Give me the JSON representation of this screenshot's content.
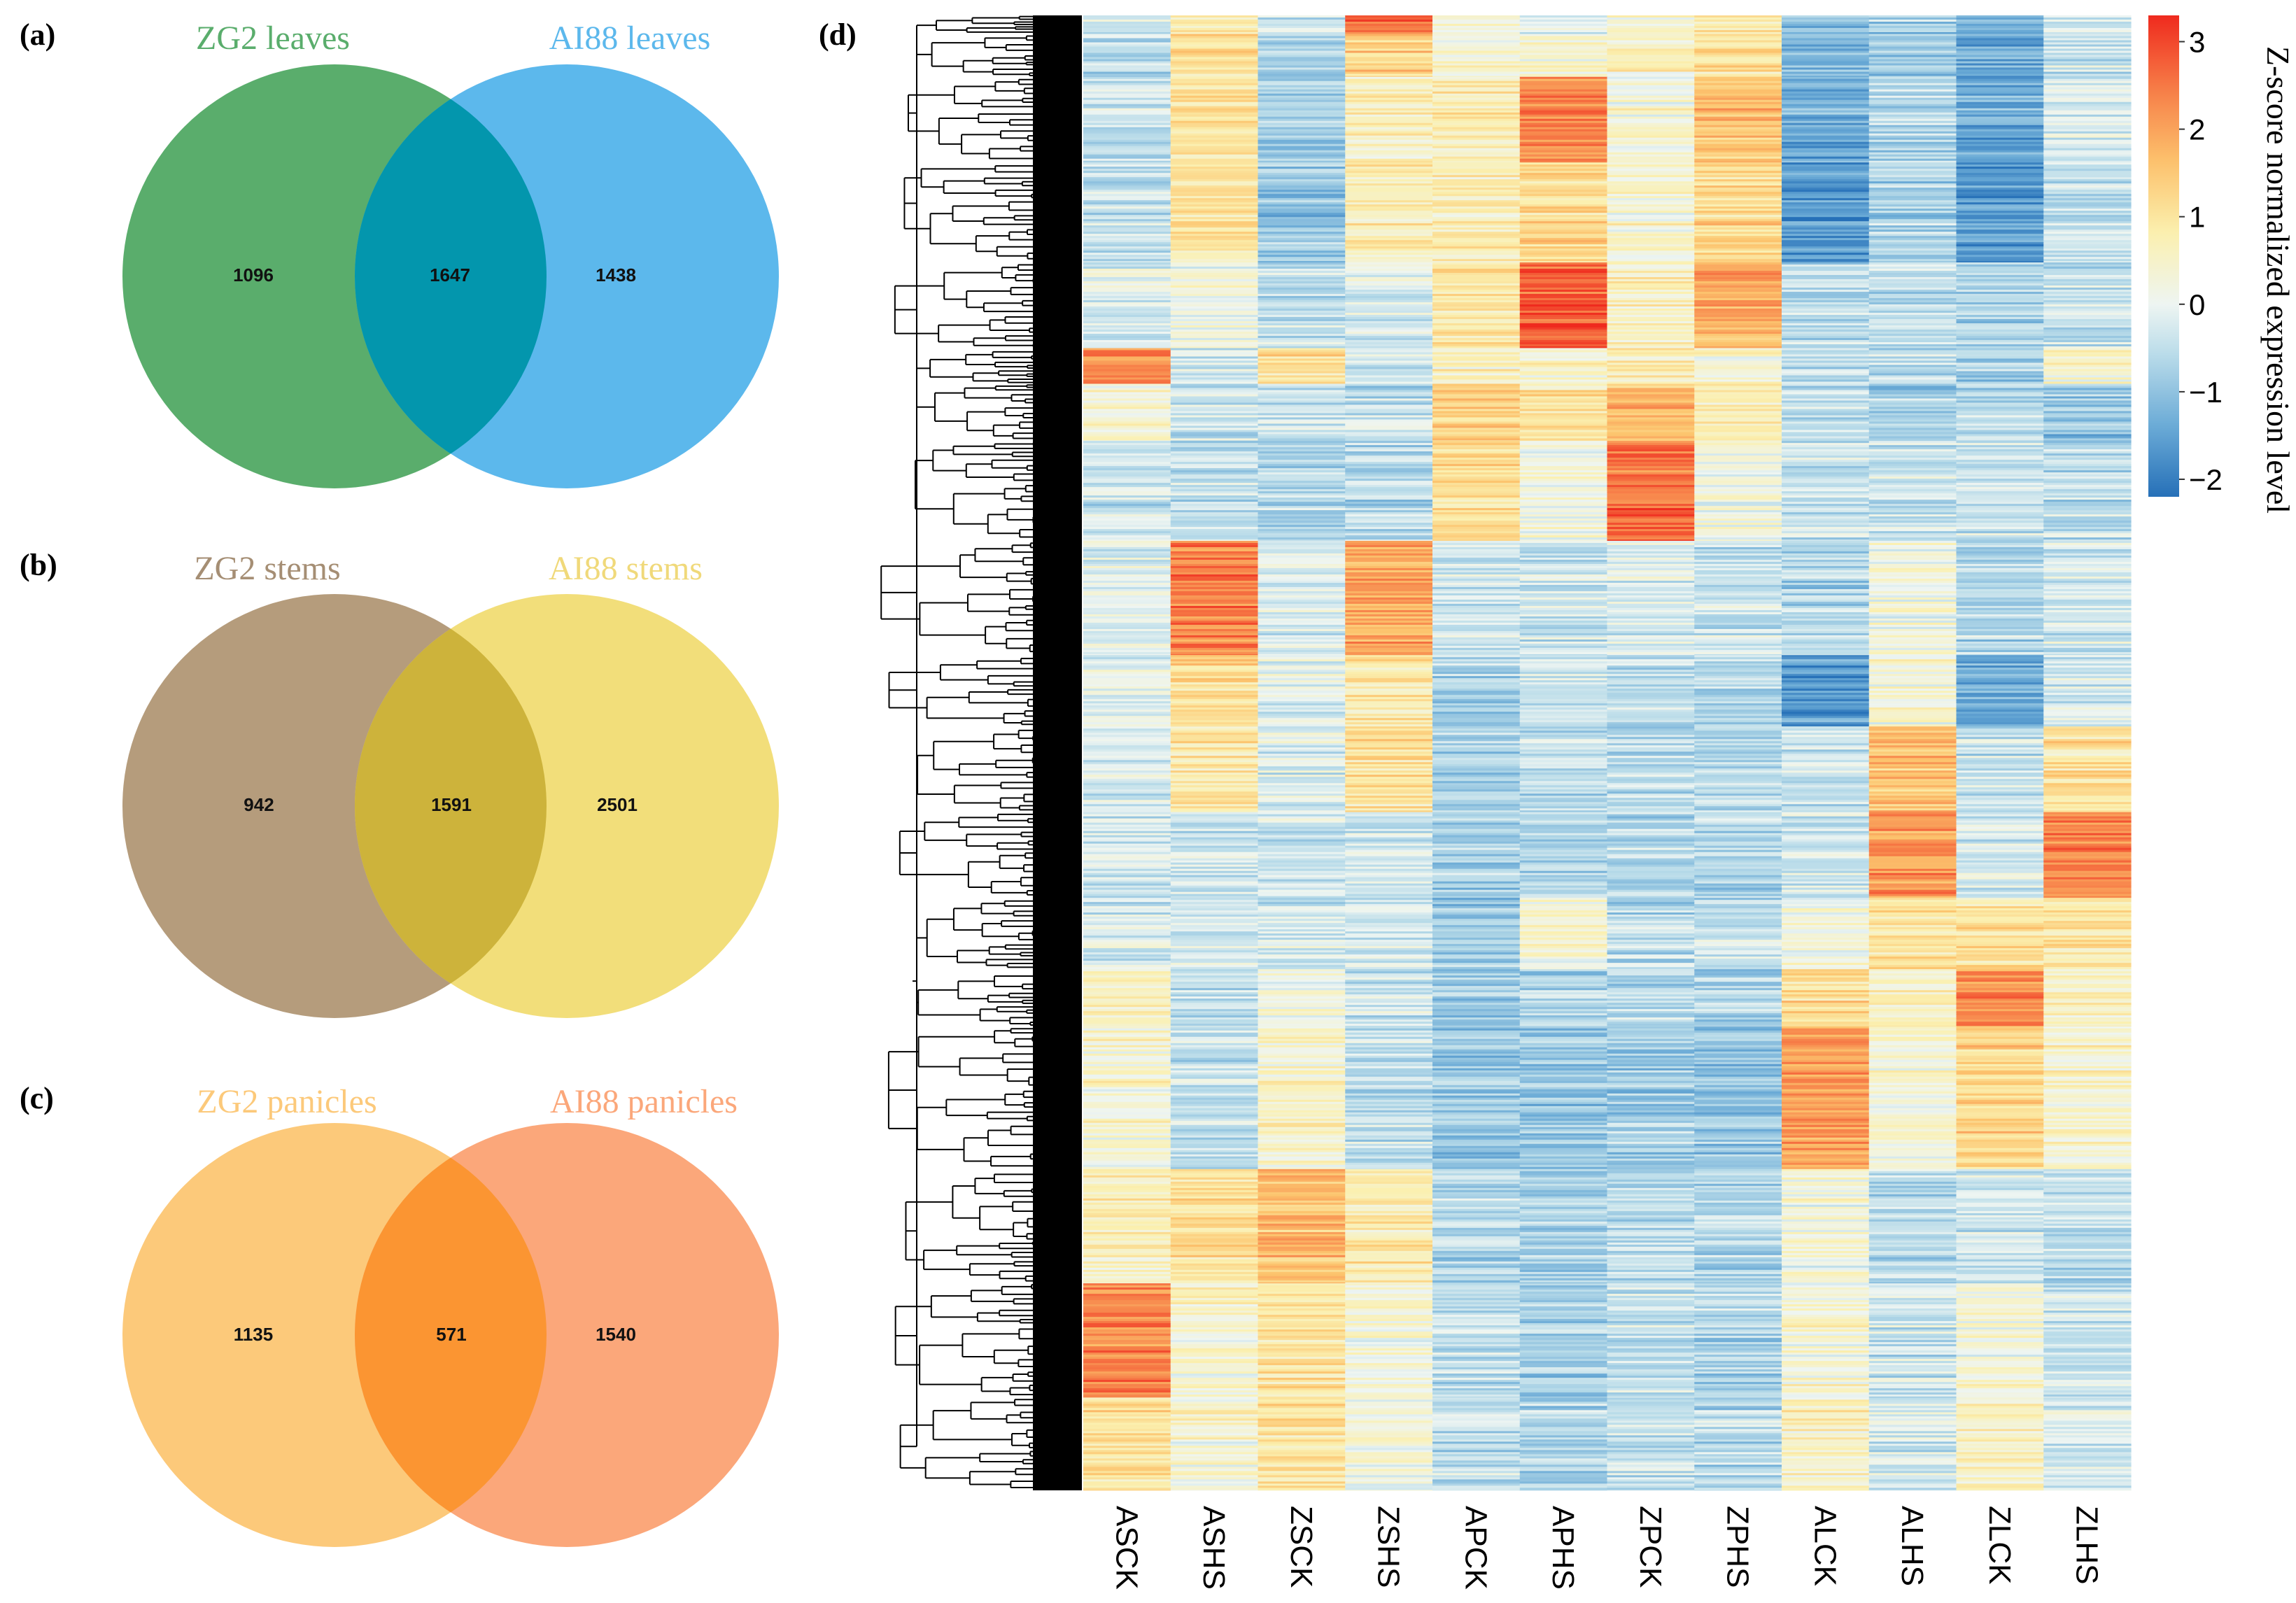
{
  "figure": {
    "panels": [
      {
        "label": "(a)",
        "left_title": "ZG2 leaves",
        "right_title": "AI88 leaves"
      },
      {
        "label": "(b)",
        "left_title": "ZG2 stems",
        "right_title": "AI88 stems"
      },
      {
        "label": "(c)",
        "left_title": "ZG2 panicles",
        "right_title": "AI88 panicles"
      },
      {
        "label": "(d)"
      }
    ],
    "colors": {
      "leaves_left": "#5aad6c",
      "leaves_right": "#5cb8ec",
      "leaves_overlap": "#0396ad",
      "stems_left": "#b59c7c",
      "stems_right": "#f2de7a",
      "stems_overlap": "#cdb33b",
      "panicles_left": "#fcc97a",
      "panicles_right": "#fba77a",
      "panicles_overlap": "#fb9532",
      "leaves_title": "#5aad6c",
      "leaves_title_right": "#5cb8ec",
      "stems_title": "#a58e74",
      "stems_title_right": "#f0d97a",
      "panicles_title": "#fcc97a",
      "panicles_title_right": "#fba77a",
      "heat_low": "#2e7fc0",
      "heat_mid": "#eef5f5",
      "heat_high": "#f03a22"
    }
  },
  "chart_data": [
    {
      "type": "venn",
      "sets": [
        "ZG2 leaves",
        "AI88 leaves"
      ],
      "left_only": "1096",
      "intersection": "1647",
      "right_only": "1438"
    },
    {
      "type": "venn",
      "sets": [
        "ZG2 stems",
        "AI88 stems"
      ],
      "left_only": "942",
      "intersection": "1591",
      "right_only": "2501"
    },
    {
      "type": "venn",
      "sets": [
        "ZG2 panicles",
        "AI88 panicles"
      ],
      "left_only": "1135",
      "intersection": "571",
      "right_only": "1540"
    },
    {
      "type": "heatmap",
      "columns": [
        "ASCK",
        "ASHS",
        "ZSCK",
        "ZSHS",
        "APCK",
        "APHS",
        "ZPCK",
        "ZPHS",
        "ALCK",
        "ALHS",
        "ZLCK",
        "ZLHS"
      ],
      "colorbar_label": "Z-score normalized expression level",
      "colorbar_ticks": [
        "3",
        "2",
        "1",
        "0",
        "−1",
        "−2"
      ],
      "colorbar_tick_values": [
        3,
        2,
        1,
        0,
        -1,
        -2
      ],
      "colorbar_range": [
        -2.2,
        3.3
      ],
      "row_dendrogram": true,
      "clusters": [
        {
          "rows": 0.013,
          "v": [
            -0.3,
            0.8,
            -0.5,
            2.6,
            0.2,
            -0.2,
            0.4,
            0.9,
            -1.0,
            -0.8,
            -1.1,
            -0.4
          ]
        },
        {
          "rows": 0.03,
          "v": [
            -0.5,
            1.0,
            -0.7,
            1.3,
            0.3,
            0.4,
            0.5,
            1.0,
            -1.2,
            -0.9,
            -1.4,
            -0.4
          ]
        },
        {
          "rows": 0.06,
          "v": [
            -0.4,
            0.9,
            -0.8,
            0.6,
            0.8,
            2.3,
            0.3,
            1.6,
            -1.4,
            -0.6,
            -1.4,
            -0.2
          ]
        },
        {
          "rows": 0.07,
          "v": [
            -0.4,
            1.0,
            -0.9,
            0.7,
            0.8,
            1.2,
            0.4,
            1.2,
            -1.6,
            -0.7,
            -1.6,
            -0.4
          ]
        },
        {
          "rows": 0.06,
          "v": [
            -0.2,
            0.1,
            -0.5,
            -0.2,
            0.9,
            2.8,
            0.6,
            1.9,
            -0.6,
            -0.5,
            -0.7,
            -0.4
          ]
        },
        {
          "rows": 0.025,
          "v": [
            2.3,
            -0.4,
            1.0,
            -0.3,
            0.6,
            0.4,
            0.8,
            0.4,
            -0.4,
            -0.6,
            -0.8,
            0.4
          ]
        },
        {
          "rows": 0.04,
          "v": [
            0.3,
            -0.4,
            -0.5,
            -0.5,
            1.2,
            0.9,
            1.7,
            0.6,
            -0.4,
            -0.8,
            -0.6,
            -1.0
          ]
        },
        {
          "rows": 0.07,
          "v": [
            -0.4,
            -0.4,
            -0.6,
            -0.6,
            1.1,
            0.2,
            2.6,
            0.1,
            -0.4,
            -0.4,
            -0.4,
            -0.5
          ]
        },
        {
          "rows": 0.08,
          "v": [
            -0.1,
            2.4,
            -0.2,
            1.9,
            -0.4,
            -0.3,
            -0.2,
            -0.4,
            -0.7,
            0.2,
            -0.6,
            -0.3
          ]
        },
        {
          "rows": 0.05,
          "v": [
            -0.1,
            1.2,
            -0.1,
            0.9,
            -0.7,
            -0.3,
            -0.5,
            -0.5,
            -1.6,
            0.3,
            -1.3,
            -0.3
          ]
        },
        {
          "rows": 0.06,
          "v": [
            -0.2,
            0.9,
            -0.2,
            1.0,
            -0.7,
            -0.5,
            -0.5,
            -0.6,
            -0.3,
            1.6,
            -0.4,
            1.0
          ]
        },
        {
          "rows": 0.06,
          "v": [
            -0.3,
            -0.3,
            -0.3,
            -0.2,
            -0.8,
            -0.6,
            -0.6,
            -0.6,
            -0.3,
            2.1,
            -0.2,
            2.3
          ]
        },
        {
          "rows": 0.05,
          "v": [
            -0.3,
            -0.3,
            -0.3,
            -0.3,
            -0.8,
            0.4,
            -0.6,
            -0.4,
            0.2,
            0.9,
            1.0,
            0.8
          ]
        },
        {
          "rows": 0.04,
          "v": [
            0.6,
            -0.5,
            0.3,
            -0.4,
            -0.8,
            -0.7,
            -0.6,
            -0.7,
            1.2,
            0.6,
            2.2,
            0.6
          ]
        },
        {
          "rows": 0.1,
          "v": [
            0.4,
            -0.5,
            0.5,
            -0.5,
            -0.9,
            -0.9,
            -0.8,
            -0.9,
            2.1,
            0.4,
            1.3,
            0.5
          ]
        },
        {
          "rows": 0.08,
          "v": [
            0.6,
            1.0,
            1.6,
            0.8,
            -0.7,
            -0.8,
            -0.6,
            -0.7,
            0.2,
            -0.6,
            -0.3,
            -0.5
          ]
        },
        {
          "rows": 0.08,
          "v": [
            2.3,
            0.4,
            0.9,
            0.2,
            -0.6,
            -0.8,
            -0.5,
            -0.7,
            0.3,
            -0.4,
            0.2,
            -0.4
          ]
        },
        {
          "rows": 0.065,
          "v": [
            1.0,
            0.4,
            1.0,
            0.3,
            -0.5,
            -0.7,
            -0.4,
            -0.6,
            0.6,
            -0.3,
            0.6,
            -0.2
          ]
        }
      ]
    }
  ]
}
